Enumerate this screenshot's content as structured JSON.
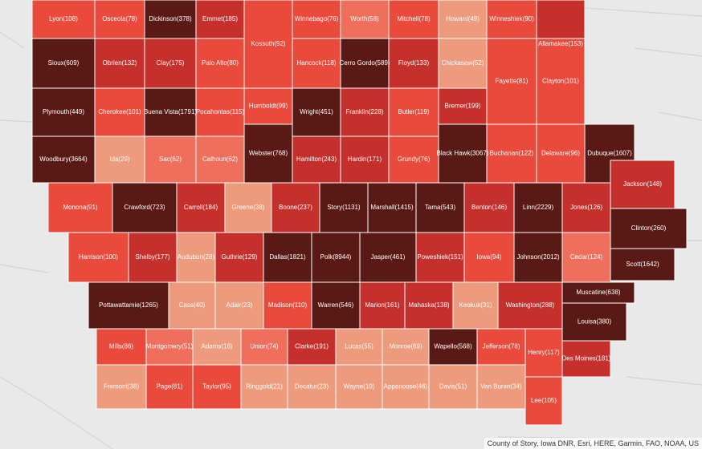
{
  "attribution": "County of Story, Iowa DNR, Esri, HERE, Garmin, FAO, NOAA, US",
  "colors": {
    "lightest": "#ee9a7c",
    "light": "#f06f5c",
    "medium": "#e94a3c",
    "dark": "#c52f2c",
    "darkest": "#591a15",
    "background": "#e9e9e9",
    "border": "#ffffff"
  },
  "legend_counts_note": "",
  "counties": [
    {
      "id": "lyon",
      "label": "Lyon(108)",
      "value": 108,
      "shade": "medium"
    },
    {
      "id": "osceola",
      "label": "Osceola(78)",
      "value": 78,
      "shade": "medium"
    },
    {
      "id": "dickinson",
      "label": "Dickinson(378)",
      "value": 378,
      "shade": "darkest"
    },
    {
      "id": "emmet",
      "label": "Emmet(185)",
      "value": 185,
      "shade": "dark"
    },
    {
      "id": "kossuth",
      "label": "Kossuth(92)",
      "value": 92,
      "shade": "medium"
    },
    {
      "id": "winnebago",
      "label": "Winnebago(76)",
      "value": 76,
      "shade": "medium"
    },
    {
      "id": "worth",
      "label": "Worth(58)",
      "value": 58,
      "shade": "light"
    },
    {
      "id": "mitchell",
      "label": "Mitchell(78)",
      "value": 78,
      "shade": "medium"
    },
    {
      "id": "howard",
      "label": "Howard(49)",
      "value": 49,
      "shade": "lightest"
    },
    {
      "id": "winneshiek",
      "label": "Winneshiek(90)",
      "value": 90,
      "shade": "medium"
    },
    {
      "id": "allamakee",
      "label": "Allamakee(153)",
      "value": 153,
      "shade": "dark"
    },
    {
      "id": "sioux",
      "label": "Sioux(609)",
      "value": 609,
      "shade": "darkest"
    },
    {
      "id": "obrien",
      "label": "Obrien(132)",
      "value": 132,
      "shade": "dark"
    },
    {
      "id": "clay",
      "label": "Clay(175)",
      "value": 175,
      "shade": "dark"
    },
    {
      "id": "paloalto",
      "label": "Palo Alto(80)",
      "value": 80,
      "shade": "medium"
    },
    {
      "id": "hancock",
      "label": "Hancock(118)",
      "value": 118,
      "shade": "medium"
    },
    {
      "id": "cerrogordo",
      "label": "Cerro Gordo(589)",
      "value": 589,
      "shade": "darkest"
    },
    {
      "id": "floyd",
      "label": "Floyd(133)",
      "value": 133,
      "shade": "dark"
    },
    {
      "id": "chickasaw",
      "label": "Chickasaw(52)",
      "value": 52,
      "shade": "lightest"
    },
    {
      "id": "fayette",
      "label": "Fayette(81)",
      "value": 81,
      "shade": "medium"
    },
    {
      "id": "clayton",
      "label": "Clayton(101)",
      "value": 101,
      "shade": "medium"
    },
    {
      "id": "plymouth",
      "label": "Plymouth(449)",
      "value": 449,
      "shade": "darkest"
    },
    {
      "id": "cherokee",
      "label": "Cherokee(101)",
      "value": 101,
      "shade": "medium"
    },
    {
      "id": "buenavista",
      "label": "Buena Vista(1791)",
      "value": 1791,
      "shade": "darkest"
    },
    {
      "id": "pocahontas",
      "label": "Pocahontas(115)",
      "value": 115,
      "shade": "medium"
    },
    {
      "id": "humboldt",
      "label": "Humboldt(99)",
      "value": 99,
      "shade": "medium"
    },
    {
      "id": "wright",
      "label": "Wright(451)",
      "value": 451,
      "shade": "darkest"
    },
    {
      "id": "franklin",
      "label": "Franklin(228)",
      "value": 228,
      "shade": "dark"
    },
    {
      "id": "butler",
      "label": "Butler(119)",
      "value": 119,
      "shade": "medium"
    },
    {
      "id": "bremer",
      "label": "Bremer(199)",
      "value": 199,
      "shade": "dark"
    },
    {
      "id": "woodbury",
      "label": "Woodbury(3664)",
      "value": 3664,
      "shade": "darkest"
    },
    {
      "id": "ida",
      "label": "Ida(29)",
      "value": 29,
      "shade": "lightest"
    },
    {
      "id": "sac",
      "label": "Sac(62)",
      "value": 62,
      "shade": "light"
    },
    {
      "id": "calhoun",
      "label": "Calhoun(62)",
      "value": 62,
      "shade": "light"
    },
    {
      "id": "webster",
      "label": "Webster(768)",
      "value": 768,
      "shade": "darkest"
    },
    {
      "id": "hamilton",
      "label": "Hamilton(243)",
      "value": 243,
      "shade": "dark"
    },
    {
      "id": "hardin",
      "label": "Hardin(171)",
      "value": 171,
      "shade": "dark"
    },
    {
      "id": "grundy",
      "label": "Grundy(76)",
      "value": 76,
      "shade": "medium"
    },
    {
      "id": "blackhawk",
      "label": "Black Hawk(3067)",
      "value": 3067,
      "shade": "darkest"
    },
    {
      "id": "buchanan",
      "label": "Buchanan(122)",
      "value": 122,
      "shade": "medium"
    },
    {
      "id": "delaware",
      "label": "Delaware(96)",
      "value": 96,
      "shade": "medium"
    },
    {
      "id": "dubuque",
      "label": "Dubuque(1607)",
      "value": 1607,
      "shade": "darkest"
    },
    {
      "id": "monona",
      "label": "Monona(91)",
      "value": 91,
      "shade": "medium"
    },
    {
      "id": "crawford",
      "label": "Crawford(723)",
      "value": 723,
      "shade": "darkest"
    },
    {
      "id": "carroll",
      "label": "Carroll(184)",
      "value": 184,
      "shade": "dark"
    },
    {
      "id": "greene",
      "label": "Greene(38)",
      "value": 38,
      "shade": "lightest"
    },
    {
      "id": "boone",
      "label": "Boone(237)",
      "value": 237,
      "shade": "dark"
    },
    {
      "id": "story",
      "label": "Story(1131)",
      "value": 1131,
      "shade": "darkest"
    },
    {
      "id": "marshall",
      "label": "Marshall(1415)",
      "value": 1415,
      "shade": "darkest"
    },
    {
      "id": "tama",
      "label": "Tama(543)",
      "value": 543,
      "shade": "darkest"
    },
    {
      "id": "benton",
      "label": "Benton(146)",
      "value": 146,
      "shade": "dark"
    },
    {
      "id": "linn",
      "label": "Linn(2229)",
      "value": 2229,
      "shade": "darkest"
    },
    {
      "id": "jones",
      "label": "Jones(126)",
      "value": 126,
      "shade": "dark"
    },
    {
      "id": "jackson",
      "label": "Jackson(148)",
      "value": 148,
      "shade": "dark"
    },
    {
      "id": "harrison",
      "label": "Harrison(100)",
      "value": 100,
      "shade": "medium"
    },
    {
      "id": "shelby",
      "label": "Shelby(177)",
      "value": 177,
      "shade": "dark"
    },
    {
      "id": "audubon",
      "label": "Audubon(28)",
      "value": 28,
      "shade": "lightest"
    },
    {
      "id": "guthrie",
      "label": "Guthrie(129)",
      "value": 129,
      "shade": "dark"
    },
    {
      "id": "dallas",
      "label": "Dallas(1821)",
      "value": 1821,
      "shade": "darkest"
    },
    {
      "id": "polk",
      "label": "Polk(8944)",
      "value": 8944,
      "shade": "darkest"
    },
    {
      "id": "jasper",
      "label": "Jasper(461)",
      "value": 461,
      "shade": "darkest"
    },
    {
      "id": "poweshiek",
      "label": "Poweshiek(151)",
      "value": 151,
      "shade": "dark"
    },
    {
      "id": "iowa",
      "label": "Iowa(94)",
      "value": 94,
      "shade": "medium"
    },
    {
      "id": "johnson",
      "label": "Johnson(2012)",
      "value": 2012,
      "shade": "darkest"
    },
    {
      "id": "cedar",
      "label": "Cedar(124)",
      "value": 124,
      "shade": "light"
    },
    {
      "id": "clinton",
      "label": "Clinton(260)",
      "value": 260,
      "shade": "darkest"
    },
    {
      "id": "scott",
      "label": "Scott(1642)",
      "value": 1642,
      "shade": "darkest"
    },
    {
      "id": "muscatine",
      "label": "Muscatine(638)",
      "value": 638,
      "shade": "darkest"
    },
    {
      "id": "pottawattamie",
      "label": "Pottawattamie(1265)",
      "value": 1265,
      "shade": "darkest"
    },
    {
      "id": "cass",
      "label": "Cass(40)",
      "value": 40,
      "shade": "lightest"
    },
    {
      "id": "adair",
      "label": "Adair(23)",
      "value": 23,
      "shade": "lightest"
    },
    {
      "id": "madison",
      "label": "Madison(110)",
      "value": 110,
      "shade": "medium"
    },
    {
      "id": "warren",
      "label": "Warren(546)",
      "value": 546,
      "shade": "darkest"
    },
    {
      "id": "marion",
      "label": "Marion(161)",
      "value": 161,
      "shade": "dark"
    },
    {
      "id": "mahaska",
      "label": "Mahaska(138)",
      "value": 138,
      "shade": "dark"
    },
    {
      "id": "keokuk",
      "label": "Keokuk(31)",
      "value": 31,
      "shade": "lightest"
    },
    {
      "id": "washington",
      "label": "Washington(288)",
      "value": 288,
      "shade": "dark"
    },
    {
      "id": "louisa",
      "label": "Louisa(380)",
      "value": 380,
      "shade": "darkest"
    },
    {
      "id": "mills",
      "label": "Mills(86)",
      "value": 86,
      "shade": "medium"
    },
    {
      "id": "montgomery",
      "label": "Montgomery(51)",
      "value": 51,
      "shade": "light"
    },
    {
      "id": "adams",
      "label": "Adams(16)",
      "value": 16,
      "shade": "lightest"
    },
    {
      "id": "union",
      "label": "Union(74)",
      "value": 74,
      "shade": "light"
    },
    {
      "id": "clarke",
      "label": "Clarke(191)",
      "value": 191,
      "shade": "dark"
    },
    {
      "id": "lucas",
      "label": "Lucas(55)",
      "value": 55,
      "shade": "lightest"
    },
    {
      "id": "monroe",
      "label": "Monroe(69)",
      "value": 69,
      "shade": "lightest"
    },
    {
      "id": "wapello",
      "label": "Wapello(568)",
      "value": 568,
      "shade": "darkest"
    },
    {
      "id": "jefferson",
      "label": "Jefferson(78)",
      "value": 78,
      "shade": "medium"
    },
    {
      "id": "henry",
      "label": "Henry(117)",
      "value": 117,
      "shade": "medium"
    },
    {
      "id": "desmoines",
      "label": "Des Moines(181)",
      "value": 181,
      "shade": "dark"
    },
    {
      "id": "fremont",
      "label": "Fremont(38)",
      "value": 38,
      "shade": "lightest"
    },
    {
      "id": "page",
      "label": "Page(81)",
      "value": 81,
      "shade": "medium"
    },
    {
      "id": "taylor",
      "label": "Taylor(95)",
      "value": 95,
      "shade": "medium"
    },
    {
      "id": "ringgold",
      "label": "Ringgold(21)",
      "value": 21,
      "shade": "lightest"
    },
    {
      "id": "decatur",
      "label": "Decatur(23)",
      "value": 23,
      "shade": "lightest"
    },
    {
      "id": "wayne",
      "label": "Wayne(10)",
      "value": 10,
      "shade": "lightest"
    },
    {
      "id": "appanoose",
      "label": "Appanoose(46)",
      "value": 46,
      "shade": "lightest"
    },
    {
      "id": "davis",
      "label": "Davis(51)",
      "value": 51,
      "shade": "lightest"
    },
    {
      "id": "vanburen",
      "label": "Van Buren(34)",
      "value": 34,
      "shade": "lightest"
    },
    {
      "id": "lee",
      "label": "Lee(105)",
      "value": 105,
      "shade": "medium"
    }
  ]
}
